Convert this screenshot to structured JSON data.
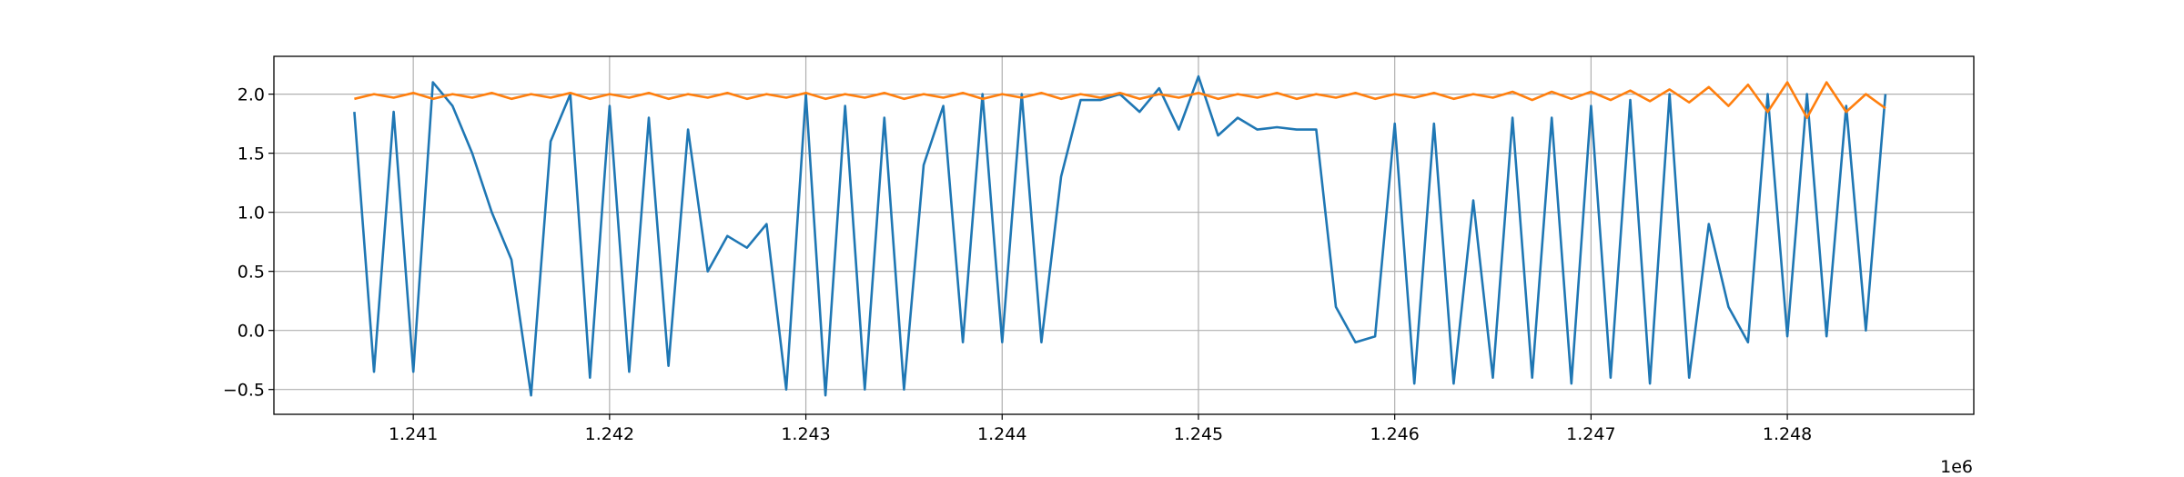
{
  "chart_data": {
    "type": "line",
    "x_offset_text": "1e6",
    "x": [
      1.2407,
      1.2408,
      1.2409,
      1.241,
      1.2411,
      1.2412,
      1.2413,
      1.2414,
      1.2415,
      1.2416,
      1.2417,
      1.2418,
      1.2419,
      1.242,
      1.2421,
      1.2422,
      1.2423,
      1.2424,
      1.2425,
      1.2426,
      1.2427,
      1.2428,
      1.2429,
      1.243,
      1.2431,
      1.2432,
      1.2433,
      1.2434,
      1.2435,
      1.2436,
      1.2437,
      1.2438,
      1.2439,
      1.244,
      1.2441,
      1.2442,
      1.2443,
      1.2444,
      1.2445,
      1.2446,
      1.2447,
      1.2448,
      1.2449,
      1.245,
      1.2451,
      1.2452,
      1.2453,
      1.2454,
      1.2455,
      1.2456,
      1.2457,
      1.2458,
      1.2459,
      1.246,
      1.2461,
      1.2462,
      1.2463,
      1.2464,
      1.2465,
      1.2466,
      1.2467,
      1.2468,
      1.2469,
      1.247,
      1.2471,
      1.2472,
      1.2473,
      1.2474,
      1.2475,
      1.2476,
      1.2477,
      1.2478,
      1.2479,
      1.248,
      1.2481,
      1.2482,
      1.2483,
      1.2484,
      1.2485
    ],
    "series": [
      {
        "color": "#1f77b4",
        "values": [
          1.85,
          -0.35,
          1.85,
          -0.35,
          2.1,
          1.9,
          1.5,
          1.0,
          0.6,
          -0.55,
          1.6,
          2.0,
          -0.4,
          1.9,
          -0.35,
          1.8,
          -0.3,
          1.7,
          0.5,
          0.8,
          0.7,
          0.9,
          -0.5,
          2.0,
          -0.55,
          1.9,
          -0.5,
          1.8,
          -0.5,
          1.4,
          1.9,
          -0.1,
          2.0,
          -0.1,
          2.0,
          -0.1,
          1.3,
          1.95,
          1.95,
          2.0,
          1.85,
          2.05,
          1.7,
          2.15,
          1.65,
          1.8,
          1.7,
          1.72,
          1.7,
          1.7,
          0.2,
          -0.1,
          -0.05,
          1.75,
          -0.45,
          1.75,
          -0.45,
          1.1,
          -0.4,
          1.8,
          -0.4,
          1.8,
          -0.45,
          1.9,
          -0.4,
          1.95,
          -0.45,
          2.0,
          -0.4,
          0.9,
          0.2,
          -0.1,
          2.0,
          -0.05,
          2.0,
          -0.05,
          1.9,
          0.0,
          2.0
        ]
      },
      {
        "color": "#ff7f0e",
        "values": [
          1.96,
          2.0,
          1.97,
          2.01,
          1.96,
          2.0,
          1.97,
          2.01,
          1.96,
          2.0,
          1.97,
          2.01,
          1.96,
          2.0,
          1.97,
          2.01,
          1.96,
          2.0,
          1.97,
          2.01,
          1.96,
          2.0,
          1.97,
          2.01,
          1.96,
          2.0,
          1.97,
          2.01,
          1.96,
          2.0,
          1.97,
          2.01,
          1.96,
          2.0,
          1.97,
          2.01,
          1.96,
          2.0,
          1.97,
          2.01,
          1.96,
          2.0,
          1.97,
          2.01,
          1.96,
          2.0,
          1.97,
          2.01,
          1.96,
          2.0,
          1.97,
          2.01,
          1.96,
          2.0,
          1.97,
          2.01,
          1.96,
          2.0,
          1.97,
          2.02,
          1.95,
          2.02,
          1.96,
          2.02,
          1.95,
          2.03,
          1.94,
          2.04,
          1.93,
          2.06,
          1.9,
          2.08,
          1.85,
          2.1,
          1.8,
          2.1,
          1.85,
          2.0,
          1.88
        ]
      }
    ],
    "xlim": [
      1.24029,
      1.24895
    ],
    "ylim": [
      -0.71,
      2.32
    ],
    "xticks": [
      1.241,
      1.242,
      1.243,
      1.244,
      1.245,
      1.246,
      1.247,
      1.248
    ],
    "yticks": [
      {
        "value": -0.5,
        "label": "−0.5"
      },
      {
        "value": 0,
        "label": "0.0"
      },
      {
        "value": 0.5,
        "label": "0.5"
      },
      {
        "value": 1,
        "label": "1.0"
      },
      {
        "value": 1.5,
        "label": "1.5"
      },
      {
        "value": 2,
        "label": "2.0"
      }
    ],
    "grid": true
  }
}
